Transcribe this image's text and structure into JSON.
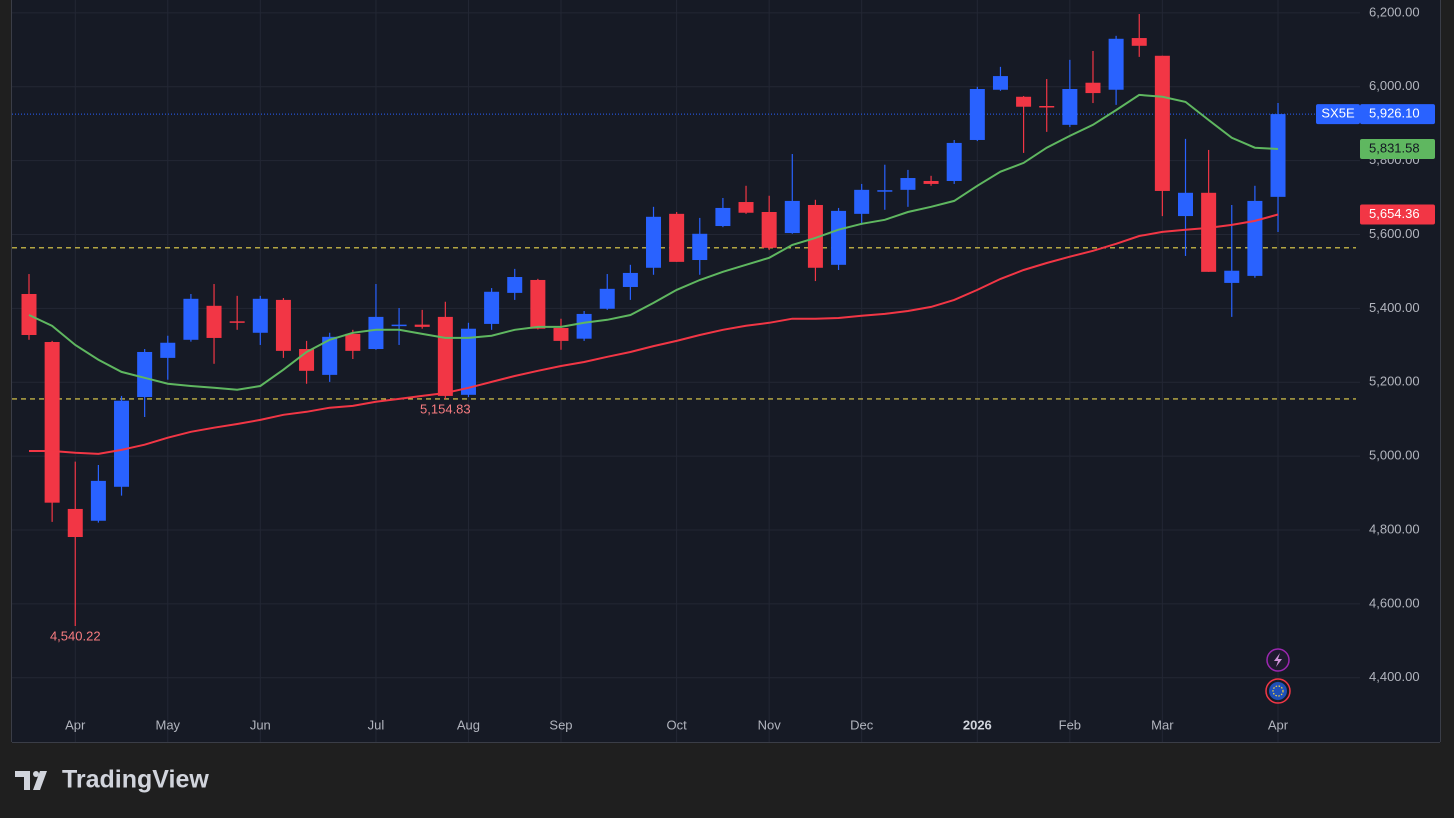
{
  "chart_data": {
    "type": "candlestick",
    "symbol": "SX5E",
    "last_close_label": "5,926.10",
    "categories": [
      null,
      null,
      "Apr",
      null,
      null,
      null,
      "May",
      null,
      null,
      null,
      "Jun",
      null,
      null,
      null,
      null,
      "Jul",
      null,
      null,
      null,
      "Aug",
      null,
      null,
      null,
      "Sep",
      null,
      null,
      null,
      null,
      "Oct",
      null,
      null,
      null,
      "Nov",
      null,
      null,
      null,
      "Dec",
      null,
      null,
      null,
      null,
      "2026",
      null,
      null,
      null,
      "Feb",
      null,
      null,
      null,
      "Mar",
      null,
      null,
      null,
      null,
      "Apr"
    ],
    "open": [
      5439,
      5309,
      4857,
      4825,
      4917,
      5160,
      5266,
      5315,
      5407,
      5365,
      5334,
      5423,
      5290,
      5220,
      5331,
      5290,
      5352,
      5356,
      5377,
      5166,
      5358,
      5442,
      5477,
      5347,
      5318,
      5399,
      5458,
      5510,
      5656,
      5531,
      5623,
      5688,
      5661,
      5604,
      5680,
      5518,
      5656,
      5718,
      5721,
      5745,
      5745,
      5856,
      5992,
      5973,
      5948,
      5897,
      6011,
      5992,
      6132,
      6084,
      5650,
      5713,
      5469,
      5488,
      5702
    ],
    "high": [
      5493,
      5312,
      4985,
      4976,
      5163,
      5290,
      5326,
      5439,
      5466,
      5434,
      5434,
      5428,
      5312,
      5334,
      5342,
      5466,
      5401,
      5396,
      5418,
      5361,
      5455,
      5507,
      5480,
      5372,
      5393,
      5493,
      5518,
      5675,
      5661,
      5645,
      5699,
      5732,
      5705,
      5818,
      5694,
      5672,
      5737,
      5789,
      5775,
      5759,
      5856,
      6000,
      6054,
      5975,
      6021,
      6073,
      6097,
      6138,
      6197,
      6084,
      5859,
      5829,
      5680,
      5732,
      5956
    ],
    "low": [
      5315,
      4822,
      4540.22,
      4820,
      4893,
      5106,
      5207,
      5310,
      5250,
      5342,
      5301,
      5266,
      5196,
      5201,
      5263,
      5288,
      5301,
      5345,
      5154.83,
      5160,
      5342,
      5423,
      5343,
      5288,
      5312,
      5396,
      5423,
      5491,
      5526,
      5491,
      5620,
      5656,
      5558,
      5602,
      5474,
      5504,
      5626,
      5667,
      5675,
      5732,
      5737,
      5853,
      5989,
      5821,
      5878,
      5891,
      5956,
      5951,
      6081,
      5650,
      5542,
      5499,
      5377,
      5483,
      5607
    ],
    "close": [
      5328,
      4874,
      4781,
      4933,
      5150,
      5282,
      5307,
      5426,
      5320,
      5362,
      5426,
      5285,
      5231,
      5323,
      5285,
      5377,
      5356,
      5350,
      5163,
      5345,
      5445,
      5485,
      5345,
      5312,
      5385,
      5453,
      5496,
      5648,
      5526,
      5602,
      5672,
      5659,
      5564,
      5691,
      5510,
      5664,
      5721,
      5720,
      5753,
      5737,
      5848,
      5994,
      6029,
      5946,
      5945,
      5994,
      5983,
      6130,
      6111,
      5718,
      5713,
      5499,
      5502,
      5691,
      5926.1
    ],
    "low_labels": [
      null,
      null,
      "4,540.22",
      null,
      null,
      null,
      null,
      null,
      null,
      null,
      null,
      null,
      null,
      null,
      null,
      null,
      null,
      null,
      "5,154.83",
      null,
      null,
      null,
      null,
      null,
      null,
      null,
      null,
      null,
      null,
      null,
      null,
      null,
      null,
      null,
      null,
      null,
      null,
      null,
      null,
      null,
      null,
      null,
      null,
      null,
      null,
      null,
      null,
      null,
      null,
      null,
      null,
      null,
      null,
      null,
      null
    ],
    "up_color": "#2962ff",
    "down_color": "#f23645",
    "overlays": [
      {
        "type": "line",
        "color": "#5fb760",
        "last_label": "5,831.58",
        "values": [
          5382,
          5353,
          5301,
          5261,
          5228,
          5212,
          5196,
          5190,
          5185,
          5180,
          5190,
          5234,
          5282,
          5315,
          5334,
          5342,
          5342,
          5331,
          5320,
          5320,
          5326,
          5342,
          5350,
          5350,
          5361,
          5369,
          5382,
          5415,
          5450,
          5477,
          5499,
          5518,
          5537,
          5572,
          5591,
          5613,
          5629,
          5640,
          5661,
          5675,
          5691,
          5732,
          5770,
          5794,
          5835,
          5867,
          5897,
          5937,
          5978,
          5973,
          5959,
          5910,
          5862,
          5835,
          5831.58
        ]
      },
      {
        "type": "line",
        "color": "#f23645",
        "last_label": "5,654.36",
        "values": [
          5014,
          5014,
          5009,
          5006,
          5017,
          5031,
          5050,
          5066,
          5077,
          5087,
          5098,
          5112,
          5120,
          5131,
          5136,
          5147,
          5155,
          5163,
          5171,
          5185,
          5201,
          5217,
          5231,
          5244,
          5255,
          5269,
          5282,
          5298,
          5312,
          5328,
          5342,
          5353,
          5361,
          5372,
          5372,
          5374,
          5380,
          5385,
          5393,
          5404,
          5423,
          5450,
          5480,
          5504,
          5523,
          5540,
          5556,
          5575,
          5596,
          5607,
          5613,
          5618,
          5626,
          5637,
          5654.36
        ]
      }
    ],
    "horizontal_lines": [
      5564,
      5154.83
    ],
    "horizontal_line_color": "#e8d44d",
    "ylim": [
      4226,
      6235
    ],
    "yticks": [
      {
        "value": 4400,
        "label": "4,400.00"
      },
      {
        "value": 4600,
        "label": "4,600.00"
      },
      {
        "value": 4800,
        "label": "4,800.00"
      },
      {
        "value": 5000,
        "label": "5,000.00"
      },
      {
        "value": 5200,
        "label": "5,200.00"
      },
      {
        "value": 5400,
        "label": "5,400.00"
      },
      {
        "value": 5600,
        "label": "5,600.00"
      },
      {
        "value": 5800,
        "label": "5,800.00"
      },
      {
        "value": 6000,
        "label": "6,000.00"
      },
      {
        "value": 6200,
        "label": "6,200.00"
      }
    ],
    "grid": true
  },
  "footer": {
    "brand": "TradingView"
  }
}
